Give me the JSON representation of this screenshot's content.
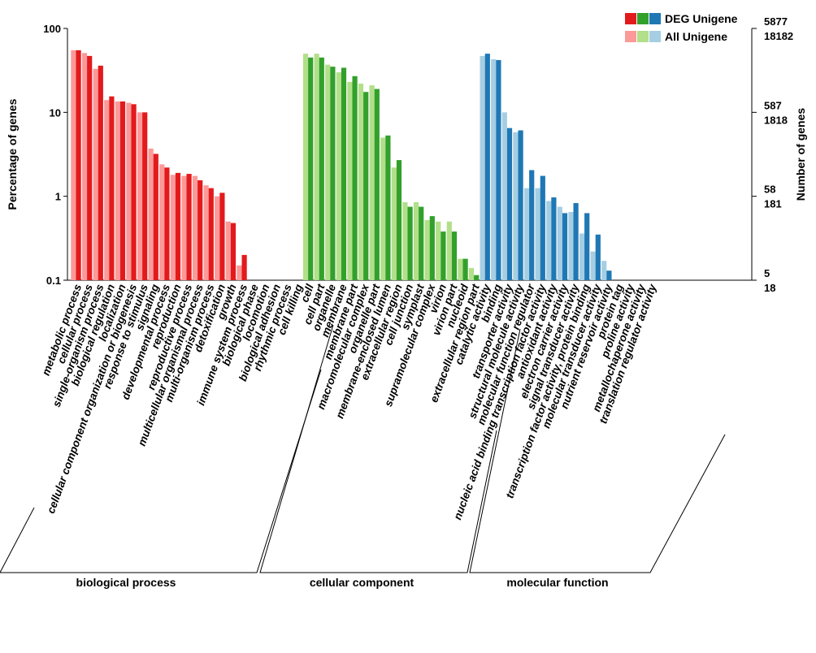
{
  "chart_data": {
    "type": "bar",
    "yscale": "log",
    "ylabel": "Percentage of genes",
    "ylabel_right": "Number of genes",
    "y_ticks": [
      "100",
      "10",
      "1",
      "0.1"
    ],
    "y_tick_values": [
      100,
      10,
      1,
      0.1
    ],
    "ylim": [
      0.1,
      100
    ],
    "right_ticks": [
      {
        "deg": "5877",
        "all": "18182",
        "at": 100
      },
      {
        "deg": "587",
        "all": "1818",
        "at": 10
      },
      {
        "deg": "58",
        "all": "181",
        "at": 1
      },
      {
        "deg": "5",
        "all": "18",
        "at": 0.1
      }
    ],
    "legend": {
      "deg_label": "DEG Unigene",
      "all_label": "All Unigene",
      "deg_colors": [
        "#e31a1c",
        "#33a02c",
        "#1f78b4"
      ],
      "all_colors": [
        "#fb9a99",
        "#b2df8a",
        "#a6cee3"
      ]
    },
    "groups": [
      {
        "name": "biological process",
        "deg_color": "#e31a1c",
        "all_color": "#fb9a99",
        "categories": [
          {
            "label": "metabolic process",
            "all": 55,
            "deg": 55
          },
          {
            "label": "cellular process",
            "all": 51,
            "deg": 47
          },
          {
            "label": "single-organism process",
            "all": 33,
            "deg": 36
          },
          {
            "label": "biological regulation",
            "all": 14,
            "deg": 15.5
          },
          {
            "label": "localization",
            "all": 13.5,
            "deg": 13.5
          },
          {
            "label": "cellular component organization or biogenesis",
            "all": 13,
            "deg": 12.5
          },
          {
            "label": "response to stimulus",
            "all": 10,
            "deg": 10
          },
          {
            "label": "signaling",
            "all": 3.7,
            "deg": 3.2
          },
          {
            "label": "developmental process",
            "all": 2.4,
            "deg": 2.2
          },
          {
            "label": "reproduction",
            "all": 1.8,
            "deg": 1.9
          },
          {
            "label": "reproductive process",
            "all": 1.75,
            "deg": 1.85
          },
          {
            "label": "multicellular organismal process",
            "all": 1.75,
            "deg": 1.55
          },
          {
            "label": "multi-organism process",
            "all": 1.35,
            "deg": 1.25
          },
          {
            "label": "detoxification",
            "all": 1.0,
            "deg": 1.1
          },
          {
            "label": "growth",
            "all": 0.5,
            "deg": 0.48
          },
          {
            "label": "immune system process",
            "all": 0.15,
            "deg": 0.2
          },
          {
            "label": "biological phase",
            "all": 0,
            "deg": 0
          },
          {
            "label": "locomotion",
            "all": 0,
            "deg": 0
          },
          {
            "label": "biological adhesion",
            "all": 0,
            "deg": 0
          },
          {
            "label": "rhythmic process",
            "all": 0,
            "deg": 0
          },
          {
            "label": "cell killing",
            "all": 0,
            "deg": 0
          }
        ]
      },
      {
        "name": "cellular component",
        "deg_color": "#33a02c",
        "all_color": "#b2df8a",
        "categories": [
          {
            "label": "cell",
            "all": 50,
            "deg": 45
          },
          {
            "label": "cell part",
            "all": 50,
            "deg": 45
          },
          {
            "label": "organelle",
            "all": 37,
            "deg": 35
          },
          {
            "label": "membrane",
            "all": 30,
            "deg": 34
          },
          {
            "label": "membrane part",
            "all": 23,
            "deg": 27
          },
          {
            "label": "macromolecular complex",
            "all": 22,
            "deg": 17.5
          },
          {
            "label": "organelle part",
            "all": 21,
            "deg": 19
          },
          {
            "label": "membrane-enclosed lumen",
            "all": 5,
            "deg": 5.3
          },
          {
            "label": "extracellular region",
            "all": 2.2,
            "deg": 2.7
          },
          {
            "label": "cell junction",
            "all": 0.85,
            "deg": 0.75
          },
          {
            "label": "symplast",
            "all": 0.85,
            "deg": 0.75
          },
          {
            "label": "supramolecular complex",
            "all": 0.52,
            "deg": 0.58
          },
          {
            "label": "virion",
            "all": 0.5,
            "deg": 0.38
          },
          {
            "label": "virion part",
            "all": 0.5,
            "deg": 0.38
          },
          {
            "label": "nucleoid",
            "all": 0.18,
            "deg": 0.18
          },
          {
            "label": "extracellular region part",
            "all": 0.14,
            "deg": 0.115
          }
        ]
      },
      {
        "name": "molecular function",
        "deg_color": "#1f78b4",
        "all_color": "#a6cee3",
        "categories": [
          {
            "label": "catalytic activity",
            "all": 47,
            "deg": 50
          },
          {
            "label": "binding",
            "all": 43,
            "deg": 42
          },
          {
            "label": "transporter activity",
            "all": 10,
            "deg": 6.5
          },
          {
            "label": "structural molecule activity",
            "all": 5.8,
            "deg": 6.1
          },
          {
            "label": "molecular function regulator",
            "all": 1.25,
            "deg": 2.05
          },
          {
            "label": "nucleic acid binding transcription factor activity",
            "all": 1.25,
            "deg": 1.75
          },
          {
            "label": "antioxidant activity",
            "all": 0.88,
            "deg": 0.97
          },
          {
            "label": "electron carrier activity",
            "all": 0.75,
            "deg": 0.63
          },
          {
            "label": "signal transducer activity",
            "all": 0.65,
            "deg": 0.83
          },
          {
            "label": "transcription factor activity, protein binding",
            "all": 0.36,
            "deg": 0.63
          },
          {
            "label": "molecular transducer activity",
            "all": 0.22,
            "deg": 0.35
          },
          {
            "label": "nutrient reservoir activity",
            "all": 0.17,
            "deg": 0.13
          },
          {
            "label": "protein tag",
            "all": 0,
            "deg": 0
          },
          {
            "label": "proline activity",
            "all": 0,
            "deg": 0
          },
          {
            "label": "metallochaperone activity",
            "all": 0,
            "deg": 0
          },
          {
            "label": "translation regulator activity",
            "all": 0,
            "deg": 0
          }
        ]
      }
    ]
  }
}
